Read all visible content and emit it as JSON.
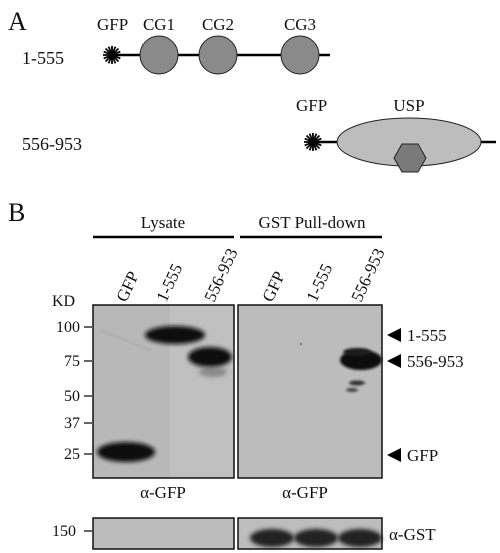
{
  "panel_a": {
    "label": "A",
    "construct1": {
      "range": "1-555",
      "gfp": "GFP",
      "domains": [
        "CG1",
        "CG2",
        "CG3"
      ]
    },
    "construct2": {
      "range": "556-953",
      "gfp": "GFP",
      "domain": "USP"
    }
  },
  "panel_b": {
    "label": "B",
    "group_lysate": "Lysate",
    "group_pulldown": "GST Pull-down",
    "lanes_lysate": [
      "GFP",
      "1-555",
      "556-953"
    ],
    "lanes_pulldown": [
      "GFP",
      "1-555",
      "556-953"
    ],
    "kd_label": "KD",
    "markers": [
      "100",
      "75",
      "50",
      "37",
      "25"
    ],
    "arrows": [
      "1-555",
      "556-953",
      "GFP"
    ],
    "blot_antibody": "α-GFP",
    "pulldown_antibody": "α-GFP",
    "lower_marker": "150",
    "lower_antibody": "α-GST"
  },
  "colors": {
    "domain_fill": "#8a8a8a",
    "usp_fill": "#bdbdbd",
    "hexagon_fill": "#7a7a7a",
    "blot_background": "#b8b8b8",
    "band": "#0d0d0d"
  }
}
